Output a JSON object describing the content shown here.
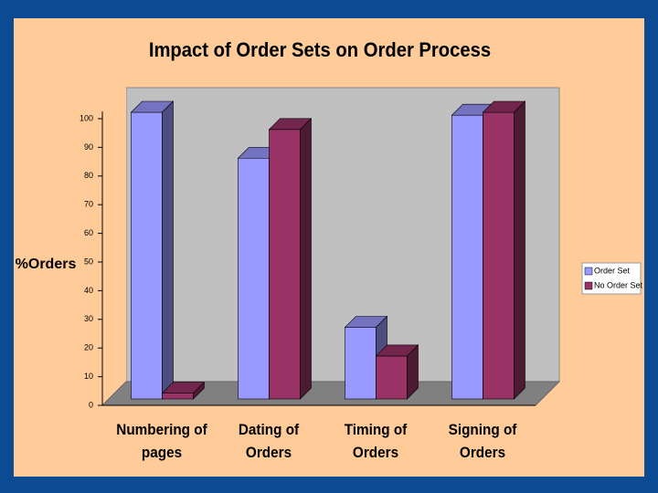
{
  "chart_data": {
    "type": "bar3d",
    "title": "Impact of Order Sets on Order Process",
    "y_label": "%Orders",
    "categories": [
      "Numbering of pages",
      "Dating of Orders",
      "Timing of Orders",
      "Signing of Orders"
    ],
    "series": [
      {
        "name": "Order Set",
        "color": "#9999ff",
        "values": [
          100,
          84,
          25,
          99
        ]
      },
      {
        "name": "No Order Set",
        "color": "#993366",
        "values": [
          2,
          94,
          15,
          100
        ]
      }
    ],
    "ylim": [
      0,
      100
    ],
    "yticks": [
      0,
      10,
      20,
      30,
      40,
      50,
      60,
      70,
      80,
      90,
      100
    ],
    "legend": "right"
  }
}
